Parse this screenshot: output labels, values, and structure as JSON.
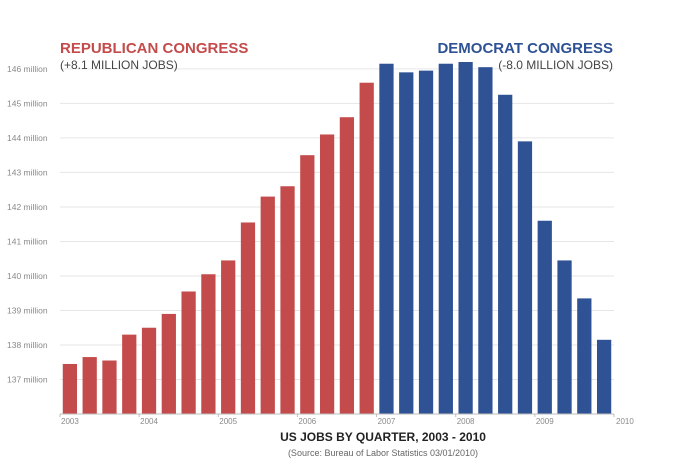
{
  "chart_data": {
    "type": "bar",
    "title": "US JOBS BY QUARTER, 2003 - 2010",
    "source": "(Source: Bureau of Labor Statistics 03/01/2010)",
    "ylabel": "",
    "ylim": [
      136,
      146.2
    ],
    "yticks": [
      137,
      138,
      139,
      140,
      141,
      142,
      143,
      144,
      145,
      146
    ],
    "ytick_labels": [
      "137 million",
      "138 million",
      "139 million",
      "140 million",
      "141 million",
      "142 million",
      "143 million",
      "144 million",
      "145 million",
      "146 million"
    ],
    "xtick_labels": [
      "2003",
      "2004",
      "2005",
      "2006",
      "2007",
      "2008",
      "2009",
      "2010"
    ],
    "series": [
      {
        "name": "REPUBLICAN CONGRESS",
        "subtitle": "(+8.1 MILLION JOBS)",
        "color": "#c44b4b",
        "categories": [
          "2003 Q1",
          "2003 Q2",
          "2003 Q3",
          "2003 Q4",
          "2004 Q1",
          "2004 Q2",
          "2004 Q3",
          "2004 Q4",
          "2005 Q1",
          "2005 Q2",
          "2005 Q3",
          "2005 Q4",
          "2006 Q1",
          "2006 Q2",
          "2006 Q3",
          "2006 Q4"
        ],
        "values": [
          137.45,
          137.65,
          137.55,
          138.3,
          138.5,
          138.9,
          139.55,
          140.05,
          140.45,
          141.55,
          142.3,
          142.6,
          143.5,
          144.1,
          144.6,
          145.6
        ]
      },
      {
        "name": "DEMOCRAT CONGRESS",
        "subtitle": "(-8.0 MILLION JOBS)",
        "color": "#2e5294",
        "categories": [
          "2007 Q1",
          "2007 Q2",
          "2007 Q3",
          "2007 Q4",
          "2008 Q1",
          "2008 Q2",
          "2008 Q3",
          "2008 Q4",
          "2009 Q1",
          "2009 Q2",
          "2009 Q3",
          "2009 Q4"
        ],
        "values": [
          146.15,
          145.9,
          145.95,
          146.15,
          146.2,
          146.05,
          145.25,
          143.9,
          141.6,
          140.45,
          139.35,
          138.15
        ]
      }
    ]
  }
}
